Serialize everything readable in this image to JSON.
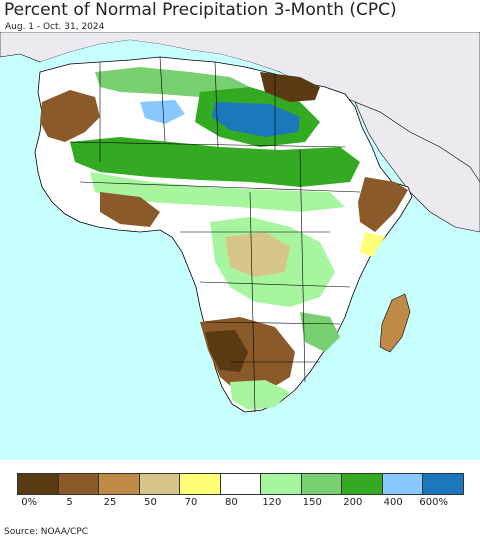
{
  "title": "Percent of Normal Precipitation 3-Month (CPC)",
  "subtitle": "Aug. 1 - Oct. 31, 2024",
  "source": "Source: NOAA/CPC",
  "legend": {
    "colors": [
      "#5a3a12",
      "#8b5a2b",
      "#c08a48",
      "#d8c58a",
      "#ffff77",
      "#ffffff",
      "#a8f5a0",
      "#78d070",
      "#33aa22",
      "#88c8ff",
      "#1a78bb"
    ],
    "ticks": [
      "0%",
      "5",
      "25",
      "50",
      "70",
      "80",
      "120",
      "150",
      "200",
      "400",
      "600%"
    ]
  },
  "map_colors": {
    "ocean": "#c8ffff",
    "land_background": "#ffffff",
    "outside_region": "#eceaf0",
    "border": "#000000"
  }
}
